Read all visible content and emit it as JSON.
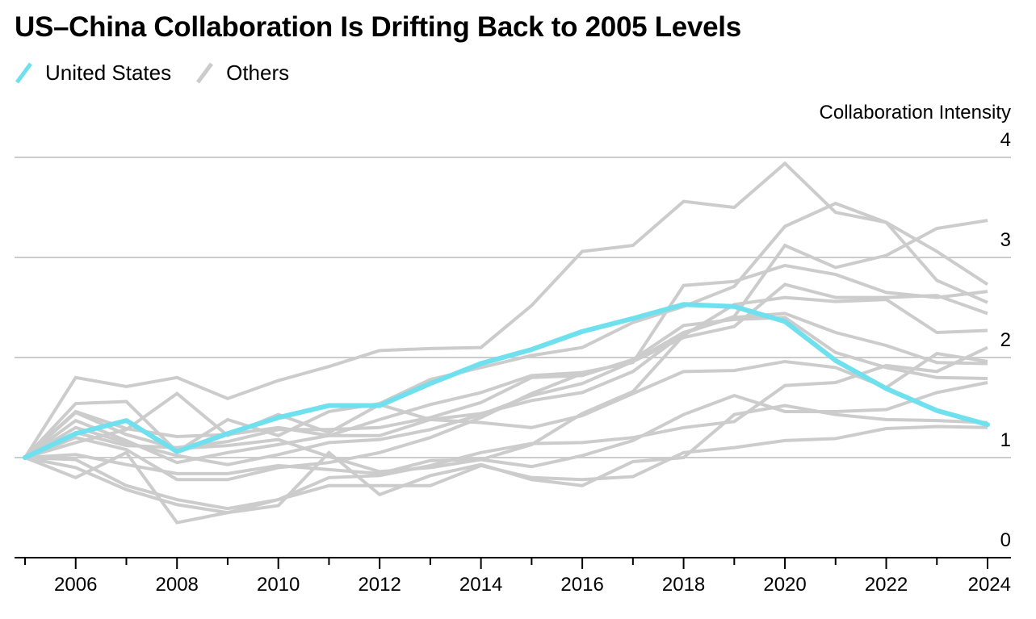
{
  "title": "US–China Collaboration Is Drifting Back to 2005 Levels",
  "legend": [
    {
      "label": "United States",
      "color": "#6fe0ee"
    },
    {
      "label": "Others",
      "color": "#cccccc"
    }
  ],
  "chart_data": {
    "type": "line",
    "title": "US–China Collaboration Is Drifting Back to 2005 Levels",
    "xlabel": "",
    "ylabel": "Collaboration Intensity",
    "x": [
      2005,
      2006,
      2007,
      2008,
      2009,
      2010,
      2011,
      2012,
      2013,
      2014,
      2015,
      2016,
      2017,
      2018,
      2019,
      2020,
      2021,
      2022,
      2023,
      2024
    ],
    "x_tick_labels": [
      "2006",
      "2008",
      "2010",
      "2012",
      "2014",
      "2016",
      "2018",
      "2020",
      "2022",
      "2024"
    ],
    "x_tick_values": [
      2006,
      2008,
      2010,
      2012,
      2014,
      2016,
      2018,
      2020,
      2022,
      2024
    ],
    "xlim": [
      2005,
      2024
    ],
    "y_tick_labels": [
      "0",
      "1",
      "2",
      "3",
      "4"
    ],
    "y_tick_values": [
      0,
      1,
      2,
      3,
      4
    ],
    "ylim": [
      0,
      4
    ],
    "grid": true,
    "legend_position": "top-left",
    "highlight_color": "#6fe0ee",
    "others_color": "#cccccc",
    "series": [
      {
        "name": "Others",
        "values": [
          1.0,
          1.8,
          1.71,
          1.8,
          1.59,
          1.77,
          1.91,
          2.07,
          2.09,
          2.1,
          2.52,
          3.06,
          3.12,
          3.56,
          3.5,
          3.94,
          3.45,
          3.35,
          2.77,
          2.55
        ]
      },
      {
        "name": "Others",
        "values": [
          1.0,
          1.54,
          1.56,
          1.06,
          1.38,
          1.22,
          1.46,
          1.54,
          1.78,
          1.9,
          2.02,
          2.1,
          2.35,
          2.51,
          2.71,
          3.31,
          3.54,
          3.35,
          3.06,
          2.73
        ]
      },
      {
        "name": "Others",
        "values": [
          1.0,
          1.46,
          1.29,
          1.21,
          1.23,
          1.3,
          1.22,
          1.22,
          1.38,
          1.44,
          1.57,
          1.65,
          1.86,
          2.24,
          2.41,
          3.12,
          2.9,
          3.02,
          3.29,
          3.37
        ]
      },
      {
        "name": "Others",
        "values": [
          1.0,
          1.37,
          1.17,
          0.95,
          1.05,
          1.13,
          1.22,
          1.38,
          1.53,
          1.65,
          1.82,
          1.85,
          1.95,
          2.72,
          2.76,
          2.92,
          2.83,
          2.65,
          2.6,
          2.66
        ]
      },
      {
        "name": "Others",
        "values": [
          1.0,
          1.3,
          1.15,
          1.02,
          0.93,
          1.03,
          1.15,
          1.18,
          1.28,
          1.43,
          1.62,
          1.74,
          1.96,
          2.2,
          2.31,
          2.73,
          2.6,
          2.6,
          2.62,
          2.44
        ]
      },
      {
        "name": "Others",
        "values": [
          1.0,
          1.2,
          1.08,
          0.78,
          0.78,
          0.9,
          0.95,
          1.05,
          1.2,
          1.4,
          1.64,
          1.84,
          1.96,
          2.25,
          2.4,
          2.44,
          2.25,
          2.12,
          1.95,
          1.94
        ]
      },
      {
        "name": "Others",
        "values": [
          1.0,
          1.45,
          1.23,
          1.09,
          1.12,
          1.18,
          1.01,
          0.86,
          0.9,
          0.98,
          1.13,
          1.44,
          1.66,
          2.22,
          2.53,
          2.6,
          2.56,
          2.58,
          2.25,
          2.27
        ]
      },
      {
        "name": "Others",
        "values": [
          1.0,
          1.25,
          1.12,
          1.1,
          1.16,
          1.28,
          1.28,
          1.3,
          1.4,
          1.55,
          1.8,
          1.82,
          1.98,
          2.32,
          2.38,
          2.4,
          2.05,
          1.9,
          1.8,
          1.79
        ]
      },
      {
        "name": "Others",
        "values": [
          1.0,
          1.15,
          1.28,
          1.64,
          1.22,
          1.43,
          1.25,
          1.53,
          1.38,
          1.35,
          1.3,
          1.42,
          1.64,
          1.86,
          1.87,
          1.96,
          1.9,
          1.7,
          2.04,
          1.96
        ]
      },
      {
        "name": "Others",
        "values": [
          1.0,
          0.98,
          0.72,
          0.58,
          0.49,
          0.58,
          0.8,
          0.82,
          0.92,
          1.05,
          1.14,
          1.15,
          1.2,
          1.3,
          1.36,
          1.72,
          1.75,
          1.92,
          1.86,
          2.1
        ]
      },
      {
        "name": "Others",
        "values": [
          1.0,
          1.03,
          0.93,
          0.84,
          0.84,
          0.92,
          0.88,
          0.84,
          0.97,
          0.98,
          0.91,
          1.02,
          1.17,
          1.43,
          1.62,
          1.46,
          1.46,
          1.48,
          1.65,
          1.75
        ]
      },
      {
        "name": "Others",
        "values": [
          1.0,
          0.8,
          1.05,
          0.35,
          0.45,
          0.52,
          1.05,
          0.63,
          0.82,
          0.93,
          0.78,
          0.72,
          0.96,
          1.0,
          1.43,
          1.52,
          1.43,
          1.38,
          1.37,
          1.35
        ]
      },
      {
        "name": "Others",
        "values": [
          1.0,
          0.9,
          0.68,
          0.53,
          0.45,
          0.58,
          0.72,
          0.72,
          0.72,
          0.92,
          0.8,
          0.78,
          0.81,
          1.05,
          1.1,
          1.17,
          1.19,
          1.29,
          1.31,
          1.3
        ]
      }
    ],
    "highlight_series": {
      "name": "United States",
      "values": [
        1.0,
        1.24,
        1.37,
        1.06,
        1.24,
        1.4,
        1.52,
        1.52,
        1.74,
        1.94,
        2.08,
        2.26,
        2.39,
        2.53,
        2.51,
        2.36,
        1.97,
        1.69,
        1.47,
        1.33
      ]
    }
  }
}
